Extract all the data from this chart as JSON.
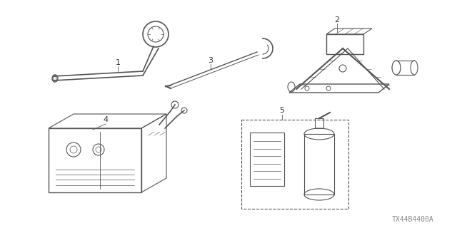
{
  "background_color": "#ffffff",
  "line_color": "#555555",
  "text_color": "#333333",
  "part_number_text": "TX44B4400A",
  "part_number_fontsize": 7,
  "label_fontsize": 8,
  "figsize": [
    6.4,
    3.2
  ],
  "dpi": 100
}
